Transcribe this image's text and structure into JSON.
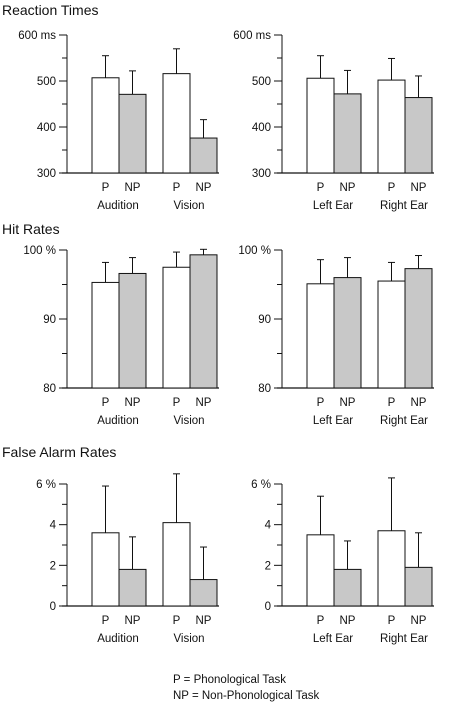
{
  "colors": {
    "phonological": "#ffffff",
    "non_phonological": "#c8c8c8",
    "stroke": "#111111"
  },
  "legend": {
    "p": "P = Phonological Task",
    "np": "NP = Non-Phonological Task"
  },
  "sections": [
    {
      "title": "Reaction Times",
      "ylim": [
        300,
        600
      ],
      "ticks": [
        {
          "value": 300,
          "label": "300"
        },
        {
          "value": 400,
          "label": "400"
        },
        {
          "value": 500,
          "label": "500"
        },
        {
          "value": 600,
          "label": "600 ms"
        }
      ],
      "minor_ticks": [
        350,
        450,
        550
      ]
    },
    {
      "title": "Hit Rates",
      "ylim": [
        80,
        100
      ],
      "ticks": [
        {
          "value": 80,
          "label": "80"
        },
        {
          "value": 90,
          "label": "90"
        },
        {
          "value": 100,
          "label": "100 %"
        }
      ],
      "minor_ticks": [
        85,
        95
      ]
    },
    {
      "title": "False Alarm Rates",
      "ylim": [
        0,
        6
      ],
      "ticks": [
        {
          "value": 0,
          "label": "0"
        },
        {
          "value": 2,
          "label": "2"
        },
        {
          "value": 4,
          "label": "4"
        },
        {
          "value": 6,
          "label": "6 %"
        }
      ],
      "minor_ticks": [
        1,
        3,
        5
      ]
    }
  ],
  "chart_data": [
    {
      "type": "bar",
      "title": "Reaction Times",
      "ylabel": "ms",
      "ylim": [
        300,
        600
      ],
      "groups": [
        "Audition",
        "Vision"
      ],
      "categories": [
        "P",
        "NP"
      ],
      "series": [
        {
          "group": "Audition",
          "values": [
            507,
            471
          ],
          "errors": [
            48,
            51
          ]
        },
        {
          "group": "Vision",
          "values": [
            516,
            376
          ],
          "errors": [
            54,
            40
          ]
        }
      ]
    },
    {
      "type": "bar",
      "title": "Reaction Times",
      "ylabel": "ms",
      "ylim": [
        300,
        600
      ],
      "groups": [
        "Left Ear",
        "Right Ear"
      ],
      "categories": [
        "P",
        "NP"
      ],
      "series": [
        {
          "group": "Left Ear",
          "values": [
            506,
            472
          ],
          "errors": [
            49,
            51
          ]
        },
        {
          "group": "Right Ear",
          "values": [
            502,
            464
          ],
          "errors": [
            47,
            47
          ]
        }
      ]
    },
    {
      "type": "bar",
      "title": "Hit Rates",
      "ylabel": "%",
      "ylim": [
        80,
        100
      ],
      "groups": [
        "Audition",
        "Vision"
      ],
      "categories": [
        "P",
        "NP"
      ],
      "series": [
        {
          "group": "Audition",
          "values": [
            95.3,
            96.6
          ],
          "errors": [
            2.9,
            2.3
          ]
        },
        {
          "group": "Vision",
          "values": [
            97.5,
            99.3
          ],
          "errors": [
            2.2,
            0.8
          ]
        }
      ]
    },
    {
      "type": "bar",
      "title": "Hit Rates",
      "ylabel": "%",
      "ylim": [
        80,
        100
      ],
      "groups": [
        "Left Ear",
        "Right Ear"
      ],
      "categories": [
        "P",
        "NP"
      ],
      "series": [
        {
          "group": "Left Ear",
          "values": [
            95.1,
            96.0
          ],
          "errors": [
            3.5,
            2.9
          ]
        },
        {
          "group": "Right Ear",
          "values": [
            95.5,
            97.3
          ],
          "errors": [
            2.7,
            1.9
          ]
        }
      ]
    },
    {
      "type": "bar",
      "title": "False Alarm Rates",
      "ylabel": "%",
      "ylim": [
        0,
        6
      ],
      "groups": [
        "Audition",
        "Vision"
      ],
      "categories": [
        "P",
        "NP"
      ],
      "series": [
        {
          "group": "Audition",
          "values": [
            3.6,
            1.8
          ],
          "errors": [
            2.3,
            1.6
          ]
        },
        {
          "group": "Vision",
          "values": [
            4.1,
            1.3
          ],
          "errors": [
            2.4,
            1.6
          ]
        }
      ]
    },
    {
      "type": "bar",
      "title": "False Alarm Rates",
      "ylabel": "%",
      "ylim": [
        0,
        6
      ],
      "groups": [
        "Left Ear",
        "Right Ear"
      ],
      "categories": [
        "P",
        "NP"
      ],
      "series": [
        {
          "group": "Left Ear",
          "values": [
            3.5,
            1.8
          ],
          "errors": [
            1.9,
            1.4
          ]
        },
        {
          "group": "Right Ear",
          "values": [
            3.7,
            1.9
          ],
          "errors": [
            2.6,
            1.7
          ]
        }
      ]
    }
  ]
}
